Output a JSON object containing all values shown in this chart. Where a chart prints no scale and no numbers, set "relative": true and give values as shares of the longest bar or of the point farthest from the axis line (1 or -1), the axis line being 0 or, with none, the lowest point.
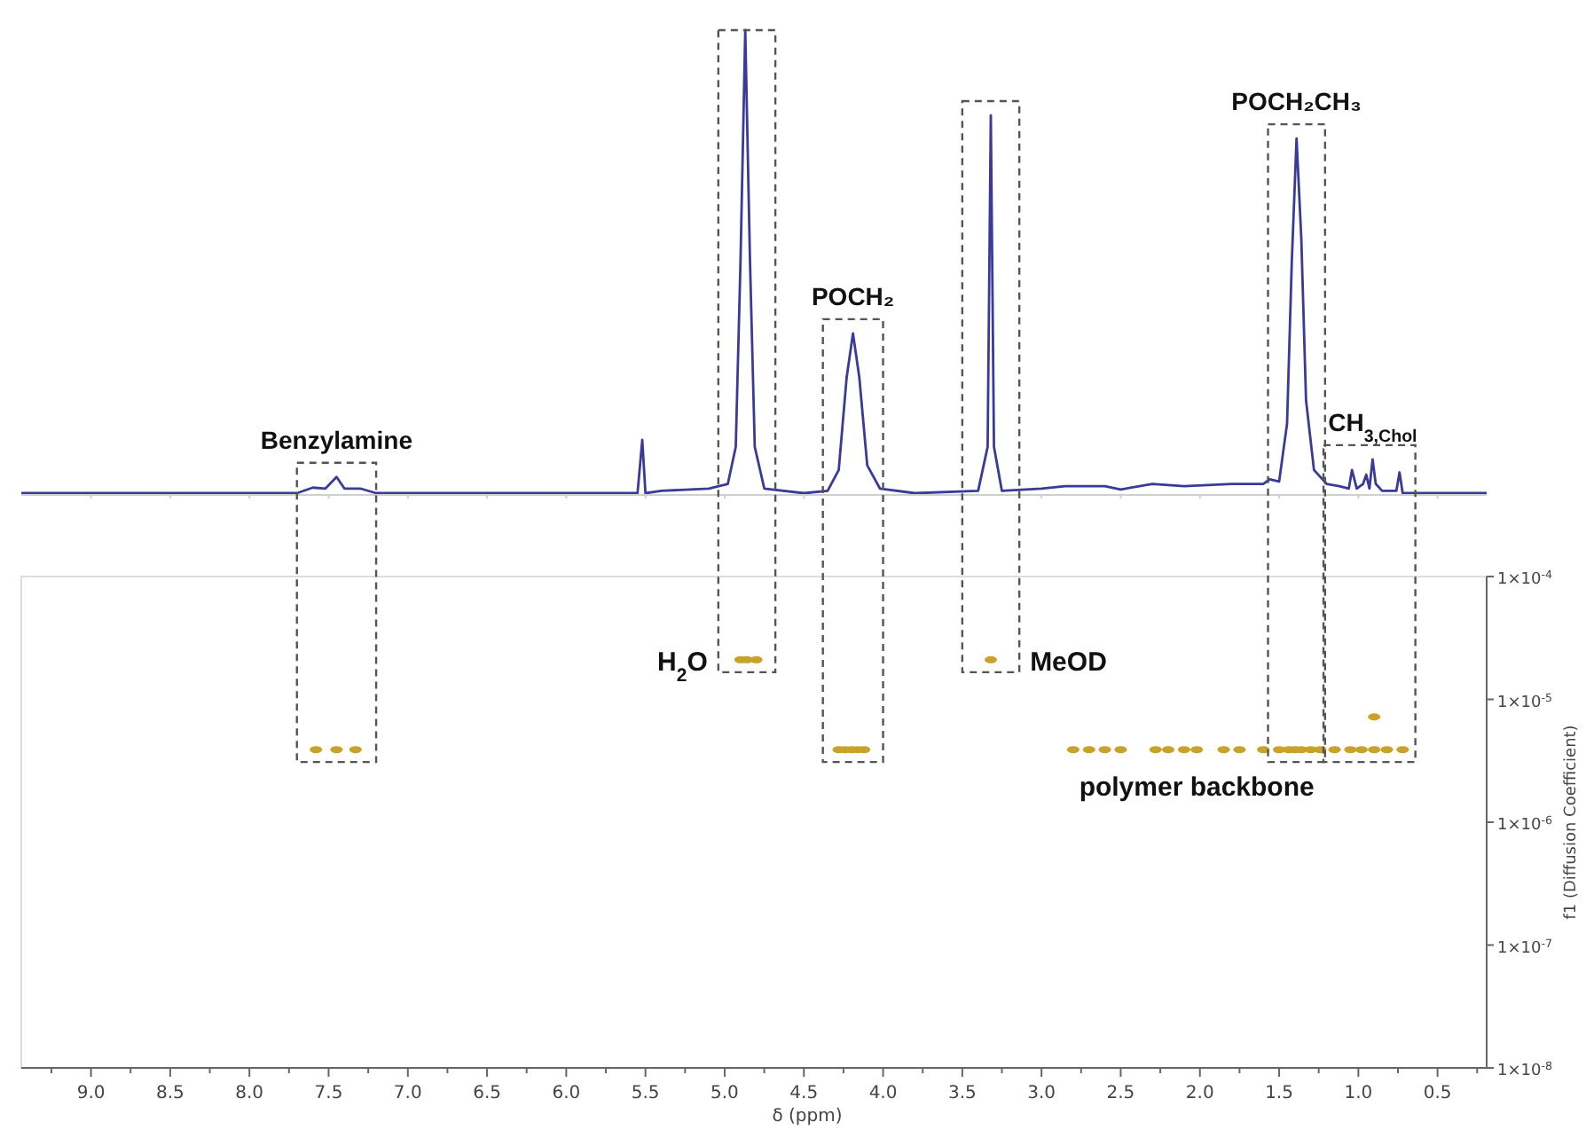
{
  "chart_data": [
    {
      "type": "line",
      "relative": true,
      "tick_labels": false,
      "xlim": [
        9.44,
        0.19
      ],
      "xticks": [
        9,
        8.5,
        8,
        7.5,
        7,
        6.5,
        6,
        5.5,
        5,
        4.5,
        4,
        3.5,
        3,
        2.5,
        2,
        1.5,
        1,
        0.5
      ],
      "series": [
        {
          "color": "#3a3a9a",
          "x": [
            9.44,
            8.0,
            7.7,
            7.6,
            7.52,
            7.45,
            7.4,
            7.3,
            7.2,
            6.0,
            5.55,
            5.52,
            5.5,
            5.4,
            5.1,
            4.98,
            4.93,
            4.9,
            4.87,
            4.84,
            4.81,
            4.75,
            4.5,
            4.35,
            4.28,
            4.23,
            4.19,
            4.15,
            4.1,
            4.02,
            3.8,
            3.4,
            3.34,
            3.32,
            3.3,
            3.25,
            3.0,
            2.85,
            2.6,
            2.5,
            2.3,
            2.1,
            1.8,
            1.6,
            1.56,
            1.5,
            1.45,
            1.42,
            1.39,
            1.36,
            1.33,
            1.28,
            1.2,
            1.12,
            1.06,
            1.04,
            1.01,
            0.97,
            0.95,
            0.93,
            0.91,
            0.89,
            0.85,
            0.76,
            0.74,
            0.72,
            0.6,
            0.19
          ],
          "values": [
            0,
            0,
            0,
            0.012,
            0.01,
            0.035,
            0.01,
            0.01,
            0,
            0,
            0,
            0.115,
            0,
            0.005,
            0.01,
            0.02,
            0.1,
            0.5,
            1,
            0.5,
            0.1,
            0.01,
            0,
            0.005,
            0.05,
            0.25,
            0.345,
            0.25,
            0.06,
            0.01,
            0,
            0.005,
            0.1,
            0.816,
            0.1,
            0.005,
            0.01,
            0.015,
            0.015,
            0.008,
            0.02,
            0.015,
            0.02,
            0.02,
            0.03,
            0.025,
            0.15,
            0.5,
            0.766,
            0.55,
            0.2,
            0.05,
            0.02,
            0.015,
            0.01,
            0.05,
            0.01,
            0.02,
            0.04,
            0.01,
            0.073,
            0.02,
            0.005,
            0.005,
            0.045,
            0,
            0,
            0
          ]
        }
      ],
      "annotations": [
        {
          "text": "Benzylamine",
          "x": 7.45,
          "y": 0.035
        },
        {
          "text": "POCH₂",
          "x": 4.19,
          "y": 0.345
        },
        {
          "text": "POCH₂CH₃",
          "x": 1.39,
          "y": 0.766
        },
        {
          "text": "CH$_{3,Chol}$",
          "x": 0.91,
          "y": 0.073
        }
      ]
    },
    {
      "type": "scatter",
      "xlabel": "δ (ppm)",
      "ylabel": "f1 (Diffusion Coefficient)",
      "log": "y",
      "marker": "circle",
      "xlim": [
        9.44,
        0.19
      ],
      "xticks": [
        {
          "value": 9.25,
          "label": null
        },
        {
          "value": 9.0,
          "label": "9.0"
        },
        {
          "value": 8.75,
          "label": null
        },
        {
          "value": 8.5,
          "label": "8.5"
        },
        {
          "value": 8.25,
          "label": null
        },
        {
          "value": 8.0,
          "label": "8.0"
        },
        {
          "value": 7.75,
          "label": null
        },
        {
          "value": 7.5,
          "label": "7.5"
        },
        {
          "value": 7.25,
          "label": null
        },
        {
          "value": 7.0,
          "label": "7.0"
        },
        {
          "value": 6.75,
          "label": null
        },
        {
          "value": 6.5,
          "label": "6.5"
        },
        {
          "value": 6.25,
          "label": null
        },
        {
          "value": 6.0,
          "label": "6.0"
        },
        {
          "value": 5.75,
          "label": null
        },
        {
          "value": 5.5,
          "label": "5.5"
        },
        {
          "value": 5.25,
          "label": null
        },
        {
          "value": 5.0,
          "label": "5.0"
        },
        {
          "value": 4.75,
          "label": null
        },
        {
          "value": 4.5,
          "label": "4.5"
        },
        {
          "value": 4.25,
          "label": null
        },
        {
          "value": 4.0,
          "label": "4.0"
        },
        {
          "value": 3.75,
          "label": null
        },
        {
          "value": 3.5,
          "label": "3.5"
        },
        {
          "value": 3.25,
          "label": null
        },
        {
          "value": 3.0,
          "label": "3.0"
        },
        {
          "value": 2.75,
          "label": null
        },
        {
          "value": 2.5,
          "label": "2.5"
        },
        {
          "value": 2.25,
          "label": null
        },
        {
          "value": 2.0,
          "label": "2.0"
        },
        {
          "value": 1.75,
          "label": null
        },
        {
          "value": 1.5,
          "label": "1.5"
        },
        {
          "value": 1.25,
          "label": null
        },
        {
          "value": 1.0,
          "label": "1.0"
        },
        {
          "value": 0.75,
          "label": null
        },
        {
          "value": 0.5,
          "label": "0.5"
        },
        {
          "value": 0.25,
          "label": null
        }
      ],
      "ylim": [
        1e-08,
        0.0001
      ],
      "yticks": [
        {
          "value": 1e-08,
          "label": "1×10$^{-8}$"
        },
        {
          "value": 1e-07,
          "label": "1×10$^{-7}$"
        },
        {
          "value": 1e-06,
          "label": "1×10$^{-6}$"
        },
        {
          "value": 1e-05,
          "label": "1×10$^{-5}$"
        },
        {
          "value": 0.0001,
          "label": "1×10$^{-4}$"
        }
      ],
      "series": [
        {
          "color": "#c9a22a",
          "x": [
            7.58,
            7.45,
            7.33,
            4.9,
            4.86,
            4.8,
            3.32,
            4.28,
            4.24,
            4.2,
            4.16,
            4.12,
            2.8,
            2.7,
            2.6,
            2.5,
            2.28,
            2.2,
            2.1,
            2.02,
            1.85,
            1.75,
            1.6,
            1.5,
            1.44,
            1.4,
            1.36,
            1.3,
            1.24,
            1.15,
            1.05,
            0.98,
            0.9,
            0.82,
            0.72,
            0.9
          ],
          "values": [
            3.9e-06,
            3.9e-06,
            3.9e-06,
            2.1e-05,
            2.1e-05,
            2.1e-05,
            2.1e-05,
            3.9e-06,
            3.9e-06,
            3.9e-06,
            3.9e-06,
            3.9e-06,
            3.9e-06,
            3.9e-06,
            3.9e-06,
            3.9e-06,
            3.9e-06,
            3.9e-06,
            3.9e-06,
            3.9e-06,
            3.9e-06,
            3.9e-06,
            3.9e-06,
            3.9e-06,
            3.9e-06,
            3.9e-06,
            3.9e-06,
            3.9e-06,
            3.9e-06,
            3.9e-06,
            3.9e-06,
            3.9e-06,
            3.9e-06,
            3.9e-06,
            3.9e-06,
            7.2e-06
          ]
        }
      ],
      "annotations": [
        {
          "text": "H$_{2}$O",
          "x": 4.86,
          "y": 2.1e-05
        },
        {
          "text": "MeOD",
          "x": 3.32,
          "y": 2.1e-05
        },
        {
          "text": "polymer backbone",
          "x": 2.02,
          "y": 3.9e-06
        }
      ]
    }
  ]
}
